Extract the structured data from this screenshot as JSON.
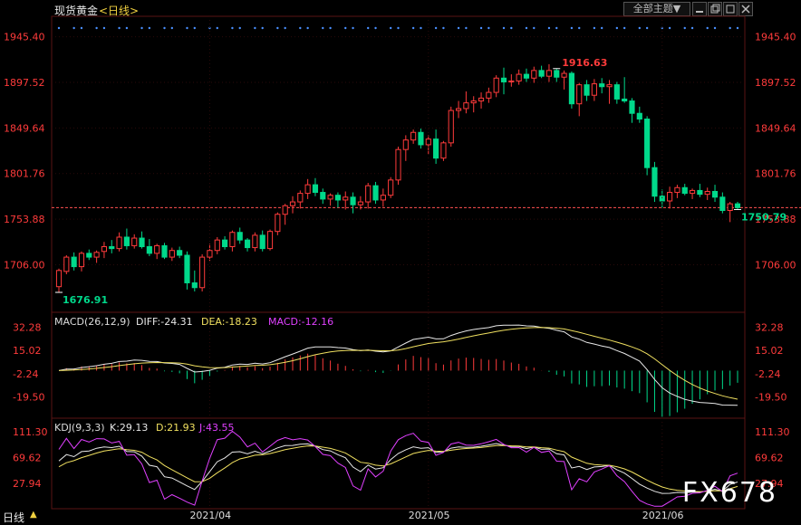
{
  "toolbar": {
    "instrument": "现货黄金",
    "period": "<日线>",
    "theme_button": "全部主题",
    "theme_arrow": "▼",
    "period_bottom": "日线",
    "up_arrow": "▲"
  },
  "watermark": "FX678",
  "colors": {
    "up": "#ff3b3b",
    "down": "#00d98b",
    "white": "#e8e8e8",
    "yellow": "#f0e060",
    "magenta": "#e040ff",
    "grid": "#5a1414",
    "axis": "#ff3b3b"
  },
  "chart_data": [
    {
      "type": "candlestick",
      "title": "",
      "y_ticks": [
        "1945.40",
        "1897.52",
        "1849.64",
        "1801.76",
        "1753.88",
        "1706.00"
      ],
      "y_tick_values": [
        1945.4,
        1897.52,
        1849.64,
        1801.76,
        1753.88,
        1706.0
      ],
      "ylim": [
        1658,
        1965
      ],
      "x_ticks": [
        "2021/04",
        "2021/05",
        "2021/06"
      ],
      "x_tick_index": [
        20,
        49,
        80
      ],
      "annotations": {
        "high": "1916.63",
        "low": "1676.91",
        "last_low": "1750.79",
        "high_index": 66,
        "low_index": 0,
        "last_low_index": 90
      },
      "current_price": 1766.0,
      "ohlc": [
        [
          1683,
          1702,
          1677,
          1700
        ],
        [
          1699,
          1716,
          1696,
          1714
        ],
        [
          1714,
          1719,
          1700,
          1704
        ],
        [
          1704,
          1720,
          1699,
          1718
        ],
        [
          1718,
          1722,
          1711,
          1714
        ],
        [
          1714,
          1721,
          1708,
          1719
        ],
        [
          1720,
          1730,
          1713,
          1725
        ],
        [
          1725,
          1732,
          1718,
          1723
        ],
        [
          1723,
          1740,
          1720,
          1735
        ],
        [
          1735,
          1744,
          1722,
          1726
        ],
        [
          1726,
          1738,
          1723,
          1734
        ],
        [
          1734,
          1741,
          1723,
          1725
        ],
        [
          1725,
          1733,
          1715,
          1718
        ],
        [
          1718,
          1728,
          1712,
          1726
        ],
        [
          1726,
          1729,
          1712,
          1714
        ],
        [
          1714,
          1724,
          1710,
          1721
        ],
        [
          1721,
          1725,
          1713,
          1716
        ],
        [
          1716,
          1720,
          1680,
          1687
        ],
        [
          1687,
          1700,
          1678,
          1682
        ],
        [
          1682,
          1717,
          1678,
          1714
        ],
        [
          1714,
          1728,
          1710,
          1721
        ],
        [
          1721,
          1735,
          1717,
          1732
        ],
        [
          1732,
          1736,
          1722,
          1725
        ],
        [
          1725,
          1742,
          1720,
          1740
        ],
        [
          1740,
          1745,
          1728,
          1732
        ],
        [
          1732,
          1734,
          1720,
          1724
        ],
        [
          1724,
          1740,
          1720,
          1737
        ],
        [
          1737,
          1742,
          1720,
          1723
        ],
        [
          1723,
          1743,
          1721,
          1741
        ],
        [
          1741,
          1761,
          1737,
          1759
        ],
        [
          1759,
          1770,
          1748,
          1768
        ],
        [
          1768,
          1778,
          1760,
          1772
        ],
        [
          1772,
          1784,
          1765,
          1781
        ],
        [
          1781,
          1796,
          1775,
          1790
        ],
        [
          1790,
          1797,
          1778,
          1782
        ],
        [
          1782,
          1786,
          1770,
          1775
        ],
        [
          1775,
          1781,
          1768,
          1779
        ],
        [
          1779,
          1782,
          1766,
          1774
        ],
        [
          1774,
          1783,
          1764,
          1777
        ],
        [
          1777,
          1782,
          1760,
          1769
        ],
        [
          1769,
          1778,
          1764,
          1772
        ],
        [
          1772,
          1792,
          1765,
          1789
        ],
        [
          1789,
          1793,
          1770,
          1774
        ],
        [
          1774,
          1786,
          1767,
          1779
        ],
        [
          1779,
          1798,
          1776,
          1795
        ],
        [
          1795,
          1830,
          1790,
          1827
        ],
        [
          1827,
          1842,
          1815,
          1837
        ],
        [
          1837,
          1848,
          1833,
          1845
        ],
        [
          1845,
          1849,
          1828,
          1832
        ],
        [
          1832,
          1842,
          1822,
          1838
        ],
        [
          1838,
          1848,
          1812,
          1818
        ],
        [
          1818,
          1836,
          1815,
          1834
        ],
        [
          1834,
          1872,
          1830,
          1868
        ],
        [
          1868,
          1878,
          1860,
          1870
        ],
        [
          1870,
          1888,
          1865,
          1876
        ],
        [
          1876,
          1883,
          1866,
          1878
        ],
        [
          1878,
          1887,
          1870,
          1881
        ],
        [
          1881,
          1892,
          1876,
          1887
        ],
        [
          1887,
          1905,
          1882,
          1902
        ],
        [
          1902,
          1913,
          1885,
          1898
        ],
        [
          1898,
          1906,
          1893,
          1899
        ],
        [
          1899,
          1911,
          1895,
          1906
        ],
        [
          1906,
          1912,
          1898,
          1902
        ],
        [
          1902,
          1914,
          1897,
          1910
        ],
        [
          1910,
          1915,
          1902,
          1904
        ],
        [
          1904,
          1916.6,
          1898,
          1910
        ],
        [
          1910,
          1912,
          1898,
          1903
        ],
        [
          1903,
          1910,
          1890,
          1907
        ],
        [
          1907,
          1909,
          1870,
          1875
        ],
        [
          1875,
          1897,
          1862,
          1895
        ],
        [
          1895,
          1900,
          1878,
          1884
        ],
        [
          1884,
          1901,
          1878,
          1896
        ],
        [
          1896,
          1902,
          1886,
          1893
        ],
        [
          1893,
          1900,
          1875,
          1895
        ],
        [
          1895,
          1898,
          1875,
          1880
        ],
        [
          1880,
          1903,
          1876,
          1878
        ],
        [
          1878,
          1881,
          1855,
          1865
        ],
        [
          1865,
          1872,
          1855,
          1859
        ],
        [
          1859,
          1862,
          1800,
          1808
        ],
        [
          1808,
          1814,
          1772,
          1778
        ],
        [
          1778,
          1785,
          1766,
          1773
        ],
        [
          1773,
          1788,
          1765,
          1782
        ],
        [
          1782,
          1790,
          1776,
          1787
        ],
        [
          1787,
          1791,
          1779,
          1781
        ],
        [
          1781,
          1786,
          1775,
          1784
        ],
        [
          1784,
          1791,
          1777,
          1780
        ],
        [
          1780,
          1787,
          1774,
          1783
        ],
        [
          1783,
          1790,
          1772,
          1777
        ],
        [
          1777,
          1782,
          1760,
          1763
        ],
        [
          1763,
          1772,
          1750.8,
          1770
        ],
        [
          1770,
          1772,
          1764,
          1766
        ]
      ]
    },
    {
      "type": "bar+line",
      "title": "MACD(26,12,9)",
      "labels": {
        "diff": "DIFF:-24.31",
        "dea": "DEA:-18.23",
        "macd": "MACD:-12.16"
      },
      "y_ticks": [
        "32.28",
        "15.02",
        "-2.24",
        "-19.50"
      ],
      "y_tick_values": [
        32.28,
        15.02,
        -2.24,
        -19.5
      ],
      "ylim": [
        -34,
        42
      ]
    },
    {
      "type": "line",
      "title": "KDJ(9,3,3)",
      "labels": {
        "k": "K:29.13",
        "d": "D:21.93",
        "j": "J:43.55"
      },
      "y_ticks": [
        "111.30",
        "69.62",
        "27.94"
      ],
      "y_tick_values": [
        111.3,
        69.62,
        27.94
      ],
      "ylim": [
        -10,
        130
      ]
    }
  ]
}
